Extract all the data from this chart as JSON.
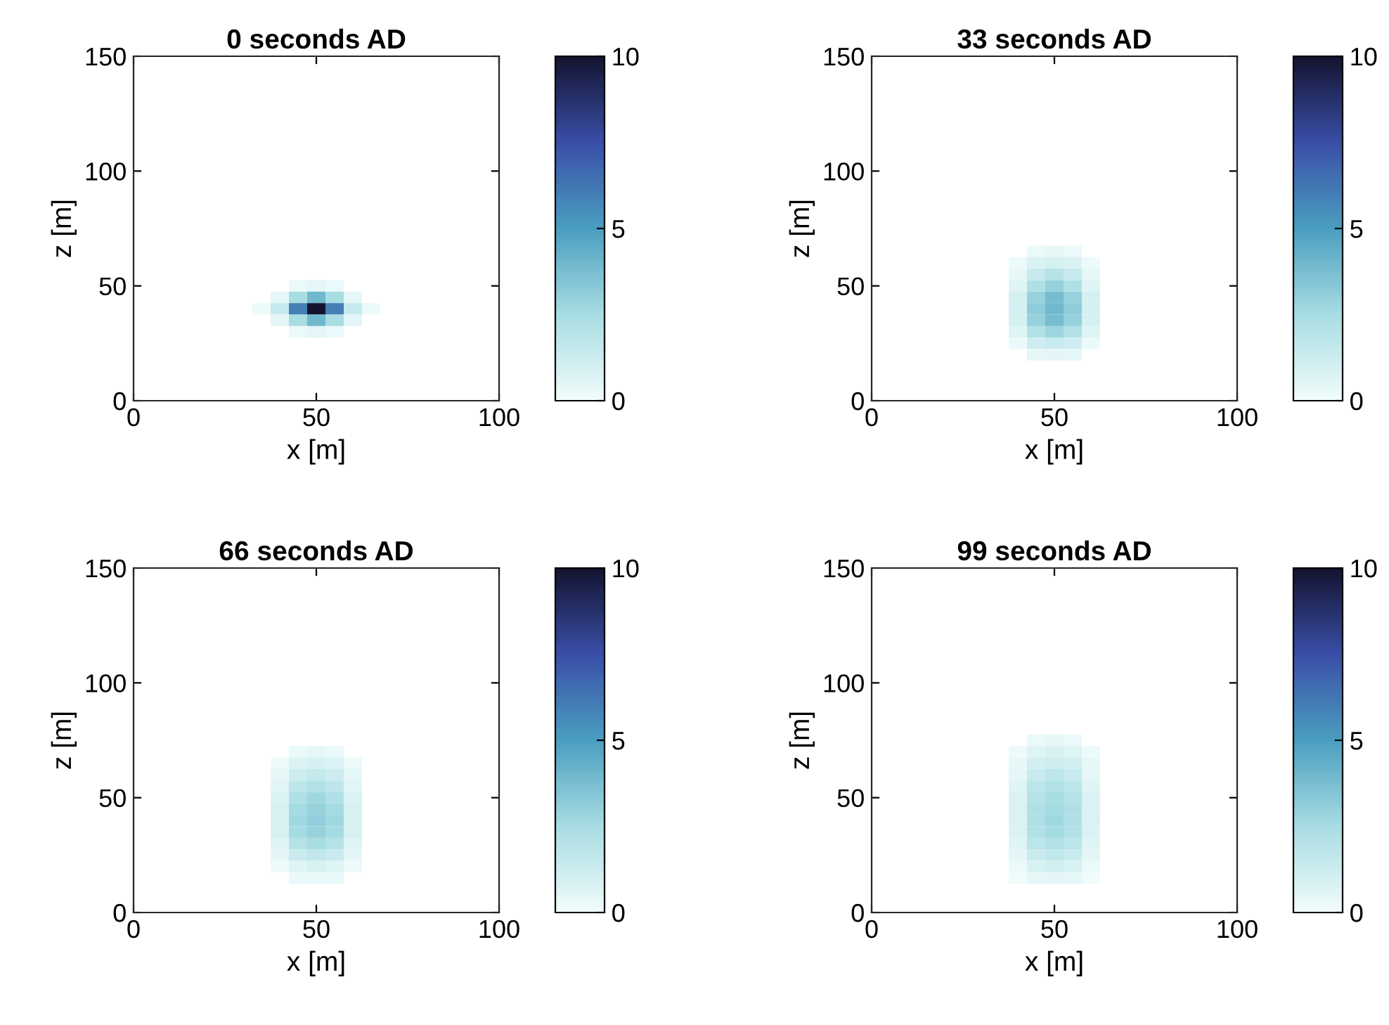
{
  "chart_data": [
    {
      "type": "heatmap",
      "title": "0 seconds AD",
      "xlabel": "x [m]",
      "ylabel": "z [m]",
      "xlim": [
        0,
        100
      ],
      "ylim": [
        0,
        150
      ],
      "xticks": [
        0,
        50,
        100
      ],
      "yticks": [
        0,
        50,
        100,
        150
      ],
      "clim": [
        0,
        10
      ],
      "cticks": [
        0,
        5,
        10
      ],
      "colors": [
        "#f2fcfc",
        "#a8dde3",
        "#4a9fc0",
        "#3a4fa8",
        "#141430"
      ],
      "x": [
        35,
        40,
        45,
        50,
        55,
        60,
        65
      ],
      "y": [
        50,
        45,
        40,
        35,
        30
      ],
      "cells": [
        [
          null,
          null,
          0.3,
          0.5,
          0.3,
          null,
          null
        ],
        [
          null,
          0.5,
          2.5,
          4,
          2.5,
          0.5,
          null
        ],
        [
          0.2,
          1.5,
          6,
          10,
          6,
          1.5,
          0.2
        ],
        [
          null,
          0.5,
          2.5,
          4,
          2.5,
          0.5,
          null
        ],
        [
          null,
          null,
          0.3,
          0.5,
          0.3,
          null,
          null
        ]
      ]
    },
    {
      "type": "heatmap",
      "title": "33 seconds AD",
      "xlabel": "x [m]",
      "ylabel": "z [m]",
      "xlim": [
        0,
        100
      ],
      "ylim": [
        0,
        150
      ],
      "xticks": [
        0,
        50,
        100
      ],
      "yticks": [
        0,
        50,
        100,
        150
      ],
      "clim": [
        0,
        10
      ],
      "cticks": [
        0,
        5,
        10
      ],
      "colors": [
        "#f2fcfc",
        "#a8dde3",
        "#4a9fc0",
        "#3a4fa8",
        "#141430"
      ],
      "x": [
        40,
        45,
        50,
        55,
        60
      ],
      "y": [
        65,
        60,
        55,
        50,
        45,
        40,
        35,
        30,
        25,
        20
      ],
      "cells": [
        [
          null,
          0.3,
          0.4,
          0.3,
          null
        ],
        [
          0.2,
          0.8,
          1,
          0.8,
          0.2
        ],
        [
          0.4,
          1.5,
          2,
          1.5,
          0.4
        ],
        [
          0.7,
          2.3,
          3,
          2.3,
          0.7
        ],
        [
          1,
          3,
          3.8,
          3,
          1
        ],
        [
          1,
          3.2,
          4,
          3.2,
          1
        ],
        [
          1,
          3,
          3.8,
          3,
          1
        ],
        [
          0.7,
          2.2,
          2.8,
          2.2,
          0.7
        ],
        [
          0.3,
          1.2,
          1.5,
          1.2,
          0.3
        ],
        [
          null,
          0.4,
          0.5,
          0.4,
          null
        ]
      ]
    },
    {
      "type": "heatmap",
      "title": "66 seconds AD",
      "xlabel": "x [m]",
      "ylabel": "z [m]",
      "xlim": [
        0,
        100
      ],
      "ylim": [
        0,
        150
      ],
      "xticks": [
        0,
        50,
        100
      ],
      "yticks": [
        0,
        50,
        100,
        150
      ],
      "clim": [
        0,
        10
      ],
      "cticks": [
        0,
        5,
        10
      ],
      "colors": [
        "#f2fcfc",
        "#a8dde3",
        "#4a9fc0",
        "#3a4fa8",
        "#141430"
      ],
      "x": [
        40,
        45,
        50,
        55,
        60
      ],
      "y": [
        70,
        65,
        60,
        55,
        50,
        45,
        40,
        35,
        30,
        25,
        20,
        15
      ],
      "cells": [
        [
          null,
          0.3,
          0.4,
          0.3,
          null
        ],
        [
          0.2,
          0.8,
          1,
          0.8,
          0.2
        ],
        [
          0.4,
          1.3,
          1.6,
          1.3,
          0.4
        ],
        [
          0.6,
          1.8,
          2.2,
          1.8,
          0.6
        ],
        [
          0.8,
          2.3,
          2.7,
          2.3,
          0.8
        ],
        [
          0.9,
          2.6,
          3,
          2.6,
          0.9
        ],
        [
          0.9,
          2.7,
          3.1,
          2.7,
          0.9
        ],
        [
          0.9,
          2.6,
          3,
          2.6,
          0.9
        ],
        [
          0.7,
          2.1,
          2.5,
          2.1,
          0.7
        ],
        [
          0.5,
          1.4,
          1.7,
          1.4,
          0.5
        ],
        [
          0.2,
          0.7,
          0.9,
          0.7,
          0.2
        ],
        [
          null,
          0.3,
          0.3,
          0.3,
          null
        ]
      ]
    },
    {
      "type": "heatmap",
      "title": "99 seconds AD",
      "xlabel": "x [m]",
      "ylabel": "z [m]",
      "xlim": [
        0,
        100
      ],
      "ylim": [
        0,
        150
      ],
      "xticks": [
        0,
        50,
        100
      ],
      "yticks": [
        0,
        50,
        100,
        150
      ],
      "clim": [
        0,
        10
      ],
      "cticks": [
        0,
        5,
        10
      ],
      "colors": [
        "#f2fcfc",
        "#a8dde3",
        "#4a9fc0",
        "#3a4fa8",
        "#141430"
      ],
      "x": [
        40,
        45,
        50,
        55,
        60
      ],
      "y": [
        75,
        70,
        65,
        60,
        55,
        50,
        45,
        40,
        35,
        30,
        25,
        20,
        15
      ],
      "cells": [
        [
          null,
          0.3,
          0.4,
          0.3,
          null
        ],
        [
          0.2,
          0.7,
          0.9,
          0.7,
          0.2
        ],
        [
          0.4,
          1.1,
          1.3,
          1.1,
          0.4
        ],
        [
          0.5,
          1.5,
          1.8,
          1.5,
          0.5
        ],
        [
          0.7,
          1.9,
          2.2,
          1.9,
          0.7
        ],
        [
          0.8,
          2.1,
          2.5,
          2.1,
          0.8
        ],
        [
          0.8,
          2.3,
          2.6,
          2.3,
          0.8
        ],
        [
          0.8,
          2.3,
          2.7,
          2.3,
          0.8
        ],
        [
          0.8,
          2.2,
          2.6,
          2.2,
          0.8
        ],
        [
          0.7,
          1.9,
          2.2,
          1.9,
          0.7
        ],
        [
          0.5,
          1.4,
          1.7,
          1.4,
          0.5
        ],
        [
          0.3,
          0.9,
          1.1,
          0.9,
          0.3
        ],
        [
          0.1,
          0.4,
          0.5,
          0.4,
          0.1
        ]
      ]
    }
  ]
}
